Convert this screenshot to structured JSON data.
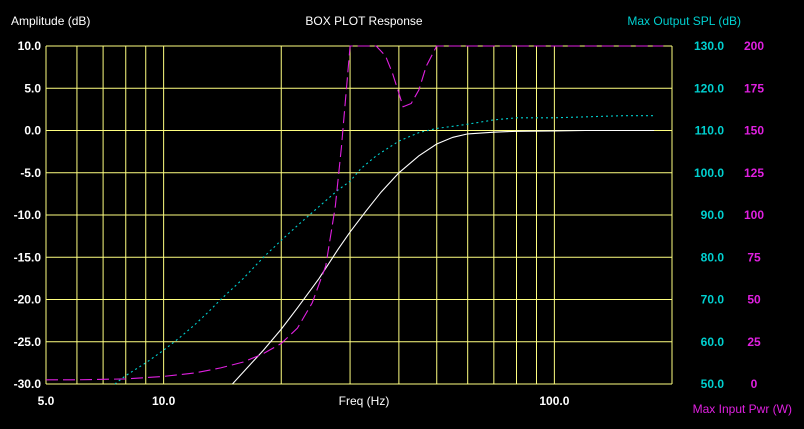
{
  "chart_data": {
    "type": "line",
    "title": "BOX PLOT  Response",
    "xlabel": "Freq (Hz)",
    "y_left_label": "Amplitude (dB)",
    "y_right1_label": "Max Output SPL (dB)",
    "y_right2_label": "Max Input Pwr (W)",
    "x_scale": "log",
    "xlim": [
      5,
      200
    ],
    "ylim_left": [
      -30,
      10
    ],
    "ylim_right1": [
      50,
      130
    ],
    "ylim_right2": [
      0,
      200
    ],
    "x_tick_labels": [
      {
        "value": 5,
        "label": "5.0"
      },
      {
        "value": 10,
        "label": "10.0"
      },
      {
        "value": 100,
        "label": "100.0"
      }
    ],
    "y_left_ticks": [
      "10.0",
      "5.0",
      "0.0",
      "-5.0",
      "-10.0",
      "-15.0",
      "-20.0",
      "-25.0",
      "-30.0"
    ],
    "y_right1_ticks": [
      "130.0",
      "120.0",
      "110.0",
      "100.0",
      "90.0",
      "80.0",
      "70.0",
      "60.0",
      "50.0"
    ],
    "y_right2_ticks": [
      "200",
      "175",
      "150",
      "125",
      "100",
      "75",
      "50",
      "25",
      "0"
    ],
    "grid": true,
    "colors": {
      "background": "#000000",
      "grid": "#ffff80",
      "axis_text": "#ffffff",
      "spl": "#00d0d0",
      "power": "#e020e0",
      "response": "#ffffff"
    },
    "series": [
      {
        "axis": "left",
        "style": "solid",
        "x": [
          15,
          18,
          20,
          22,
          25,
          28,
          30,
          33,
          36,
          40,
          45,
          50,
          55,
          60,
          70,
          80,
          100,
          120,
          150,
          180
        ],
        "values": [
          -31,
          -26,
          -23.5,
          -21,
          -17.5,
          -14,
          -12,
          -9.5,
          -7.3,
          -5,
          -3,
          -1.6,
          -0.8,
          -0.4,
          -0.2,
          -0.1,
          -0.05,
          0,
          0,
          0
        ]
      },
      {
        "axis": "right1",
        "style": "dotted",
        "x": [
          7.5,
          8,
          9,
          10,
          11,
          12,
          13,
          14,
          16,
          18,
          20,
          22,
          25,
          28,
          30,
          32,
          35,
          40,
          45,
          50,
          55,
          60,
          70,
          80,
          100,
          150,
          180
        ],
        "values": [
          49.5,
          52,
          55,
          58,
          61,
          64,
          67,
          70,
          75,
          80,
          84,
          87.5,
          92,
          96,
          98,
          101,
          104,
          107.5,
          109.5,
          110.5,
          111,
          111.5,
          112.5,
          113,
          113,
          113.5,
          113.5
        ]
      },
      {
        "axis": "right2",
        "style": "dashed",
        "x": [
          5,
          6,
          8,
          10,
          12,
          14,
          16,
          18,
          20,
          22,
          24,
          26,
          27.5,
          28.5,
          29.5,
          30,
          35,
          37,
          38.5,
          40,
          41,
          43,
          45,
          47,
          50,
          53,
          55,
          60,
          80,
          100,
          150,
          190
        ],
        "values": [
          2.5,
          2.5,
          3,
          4.5,
          6.5,
          9.5,
          13,
          18,
          24,
          33,
          48,
          70,
          105,
          140,
          180,
          200,
          200,
          194,
          184,
          172,
          164,
          166,
          174,
          188,
          200,
          200,
          200,
          200,
          200,
          200,
          200,
          200
        ]
      }
    ]
  }
}
